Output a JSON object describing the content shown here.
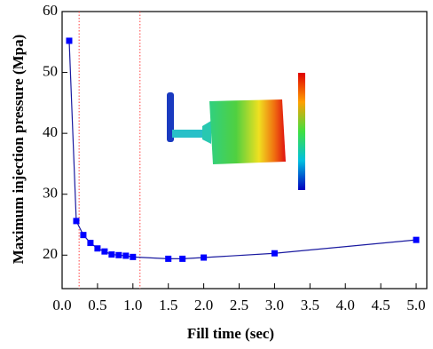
{
  "chart_data": {
    "type": "line",
    "x_label": "Fill time (sec)",
    "y_label": "Maximum injection pressure (Mpa)",
    "x": [
      0.1,
      0.2,
      0.3,
      0.4,
      0.5,
      0.6,
      0.7,
      0.8,
      0.9,
      1.0,
      1.5,
      1.7,
      2.0,
      3.0,
      5.0
    ],
    "series": [
      {
        "color": "#0000ff",
        "line_color": "#1a1aa0",
        "values": [
          55.2,
          25.6,
          23.3,
          22.0,
          21.1,
          20.6,
          20.1,
          20.0,
          19.9,
          19.7,
          19.4,
          19.4,
          19.6,
          20.3,
          22.5
        ]
      }
    ],
    "xlim": [
      0,
      5.15
    ],
    "ylim": [
      14.5,
      60
    ],
    "xticks": [
      {
        "value": 0,
        "label": "0.0"
      },
      0.5,
      {
        "value": 1,
        "label": "1.0"
      },
      1.5,
      {
        "value": 2,
        "label": "2.0"
      },
      2.5,
      {
        "value": 3,
        "label": "3.0"
      },
      3.5,
      {
        "value": 4,
        "label": "4.0"
      },
      4.5,
      {
        "value": 5,
        "label": "5.0"
      }
    ],
    "yticks": [
      20,
      30,
      40,
      50,
      60
    ],
    "vlines": [
      0.24,
      1.1
    ],
    "vline_color": "#ff4040"
  }
}
